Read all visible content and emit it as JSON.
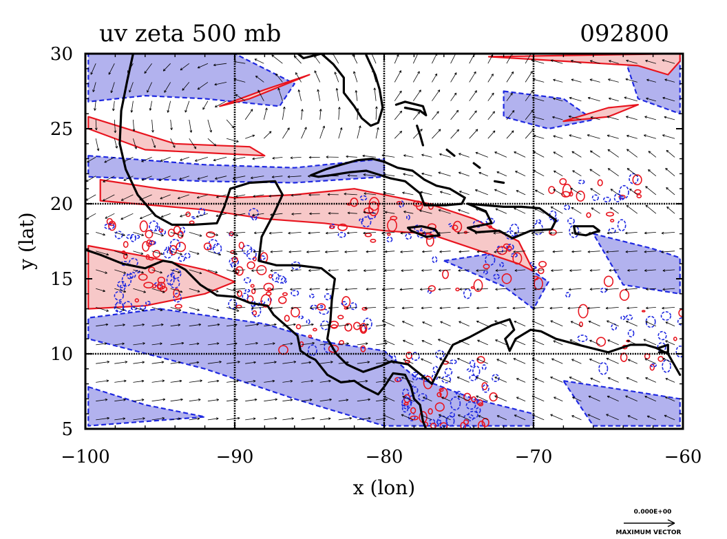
{
  "title": "uv zeta 500 mb",
  "timestamp": "092800",
  "axes": {
    "xlabel": "x (lon)",
    "ylabel": "y (lat)",
    "xlim": [
      -100,
      -60
    ],
    "ylim": [
      5,
      30
    ],
    "xticks": [
      -100,
      -90,
      -80,
      -70,
      -60
    ],
    "yticks": [
      5,
      10,
      15,
      20,
      25,
      30
    ],
    "xtick_labels": [
      "−100",
      "−90",
      "−80",
      "−70",
      "−60"
    ],
    "ytick_labels": [
      "5",
      "10",
      "15",
      "20",
      "25",
      "30"
    ],
    "gridlines_lon": [
      -90,
      -80,
      -70
    ],
    "gridlines_lat": [
      10,
      20
    ]
  },
  "legend": {
    "reference_value": "0.000E+00",
    "reference_caption": "MAXIMUM VECTOR"
  },
  "colors": {
    "positive_fill": "#f7c8c8",
    "positive_line": "#e8141e",
    "negative_fill": "#b2b2ee",
    "negative_line": "#1e28e0",
    "coast": "#000000",
    "vector": "#000000"
  },
  "chart_data": {
    "type": "map",
    "variables": [
      "u wind vectors",
      "relative vorticity (zeta)"
    ],
    "level": "500 mb",
    "x_range": [
      -100,
      -60
    ],
    "y_range": [
      5,
      30
    ],
    "positive_regions_lonlat": [
      [
        [
          -99,
          20.2
        ],
        [
          -92,
          19.6
        ],
        [
          -88,
          19.0
        ],
        [
          -84,
          18.7
        ],
        [
          -80,
          18.2
        ],
        [
          -77,
          18.0
        ],
        [
          -74,
          17.0
        ],
        [
          -71,
          16.0
        ],
        [
          -70,
          15.5
        ],
        [
          -71,
          17.5
        ],
        [
          -74,
          19.0
        ],
        [
          -77,
          20.0
        ],
        [
          -82,
          21.0
        ],
        [
          -86,
          20.6
        ],
        [
          -90,
          20.4
        ],
        [
          -95,
          21.0
        ],
        [
          -99,
          21.6
        ]
      ],
      [
        [
          -99.8,
          17.2
        ],
        [
          -96,
          16.5
        ],
        [
          -92,
          15.6
        ],
        [
          -90,
          14.8
        ],
        [
          -92,
          14.0
        ],
        [
          -96,
          13.2
        ],
        [
          -99.8,
          13.0
        ]
      ],
      [
        [
          -99.8,
          25.0
        ],
        [
          -96,
          23.6
        ],
        [
          -92,
          23.4
        ],
        [
          -88,
          23.2
        ],
        [
          -89,
          23.8
        ],
        [
          -94,
          24.0
        ],
        [
          -99.8,
          25.8
        ]
      ],
      [
        [
          -91,
          26.5
        ],
        [
          -88,
          27.6
        ],
        [
          -85,
          28.6
        ],
        [
          -86,
          28.2
        ],
        [
          -89,
          27.0
        ]
      ],
      [
        [
          -73,
          29.8
        ],
        [
          -68,
          29.5
        ],
        [
          -63,
          29.2
        ],
        [
          -61,
          28.6
        ],
        [
          -60.2,
          29.5
        ],
        [
          -60.2,
          30
        ]
      ],
      [
        [
          -68,
          25.5
        ],
        [
          -65,
          26.4
        ],
        [
          -63,
          26.6
        ],
        [
          -65,
          25.8
        ]
      ]
    ],
    "negative_regions_lonlat": [
      [
        [
          -99.8,
          30
        ],
        [
          -90,
          30
        ],
        [
          -86,
          28.0
        ],
        [
          -87,
          26.5
        ],
        [
          -92,
          27.0
        ],
        [
          -96,
          27.2
        ],
        [
          -99.8,
          26.8
        ]
      ],
      [
        [
          -99.8,
          23.2
        ],
        [
          -92,
          22.6
        ],
        [
          -86,
          22.4
        ],
        [
          -80,
          23.0
        ],
        [
          -80,
          21.8
        ],
        [
          -86,
          21.4
        ],
        [
          -92,
          21.5
        ],
        [
          -99.8,
          21.8
        ]
      ],
      [
        [
          -95,
          13.0
        ],
        [
          -88,
          12.0
        ],
        [
          -84,
          10.8
        ],
        [
          -80,
          10.2
        ],
        [
          -78,
          8.5
        ],
        [
          -74,
          7.0
        ],
        [
          -70,
          6.0
        ],
        [
          -70,
          5.2
        ],
        [
          -80,
          5.2
        ],
        [
          -86,
          7.0
        ],
        [
          -92,
          9.0
        ],
        [
          -99.8,
          11.0
        ],
        [
          -99.8,
          12.4
        ]
      ],
      [
        [
          -99.8,
          7.8
        ],
        [
          -96,
          6.6
        ],
        [
          -92,
          5.8
        ],
        [
          -99.8,
          5.2
        ]
      ],
      [
        [
          -76,
          16.2
        ],
        [
          -72,
          14.5
        ],
        [
          -70,
          13.0
        ],
        [
          -69,
          14.8
        ],
        [
          -72,
          16.8
        ]
      ],
      [
        [
          -64,
          30
        ],
        [
          -60.2,
          30
        ],
        [
          -60.2,
          26.0
        ],
        [
          -63,
          27.0
        ]
      ],
      [
        [
          -72,
          27.5
        ],
        [
          -68,
          27.0
        ],
        [
          -66,
          25.6
        ],
        [
          -69,
          25.0
        ],
        [
          -72,
          25.8
        ]
      ],
      [
        [
          -66,
          18.0
        ],
        [
          -62,
          17.0
        ],
        [
          -60.2,
          16.4
        ],
        [
          -60.2,
          14.0
        ],
        [
          -64,
          14.6
        ]
      ],
      [
        [
          -68,
          8.2
        ],
        [
          -64,
          7.6
        ],
        [
          -60.2,
          7.0
        ],
        [
          -60.2,
          5.2
        ],
        [
          -66,
          5.2
        ]
      ]
    ],
    "coastlines_lonlat": [
      [
        [
          -96.8,
          30
        ],
        [
          -97.2,
          28.2
        ],
        [
          -97.6,
          26.2
        ],
        [
          -97.7,
          24.0
        ],
        [
          -97.3,
          22.3
        ],
        [
          -96.5,
          20.6
        ],
        [
          -95.3,
          19.2
        ],
        [
          -94.2,
          18.6
        ],
        [
          -92.8,
          18.6
        ],
        [
          -91.2,
          18.7
        ],
        [
          -90.7,
          19.8
        ],
        [
          -90.3,
          21.0
        ],
        [
          -89.0,
          21.4
        ],
        [
          -87.3,
          21.5
        ],
        [
          -86.8,
          20.6
        ],
        [
          -87.4,
          19.3
        ],
        [
          -88.2,
          17.8
        ],
        [
          -88.4,
          16.2
        ],
        [
          -87.2,
          15.9
        ],
        [
          -85.8,
          15.9
        ],
        [
          -84.2,
          15.7
        ],
        [
          -83.3,
          15.0
        ],
        [
          -83.5,
          13.6
        ],
        [
          -83.6,
          12.2
        ],
        [
          -83.8,
          11.0
        ],
        [
          -83.2,
          10.0
        ],
        [
          -82.5,
          9.3
        ],
        [
          -81.4,
          8.8
        ],
        [
          -80.2,
          9.2
        ],
        [
          -79.5,
          9.5
        ],
        [
          -78.4,
          9.3
        ],
        [
          -77.4,
          8.5
        ],
        [
          -76.8,
          8.0
        ],
        [
          -76.2,
          9.2
        ],
        [
          -75.4,
          10.6
        ],
        [
          -74.3,
          11.1
        ],
        [
          -72.8,
          11.9
        ],
        [
          -71.6,
          12.3
        ],
        [
          -71.3,
          11.6
        ],
        [
          -71.9,
          11.0
        ],
        [
          -71.6,
          10.2
        ],
        [
          -71.2,
          11.0
        ],
        [
          -70.2,
          11.6
        ],
        [
          -69.5,
          11.5
        ],
        [
          -68.5,
          11.0
        ],
        [
          -67.0,
          10.6
        ],
        [
          -65.0,
          10.1
        ],
        [
          -63.5,
          10.6
        ],
        [
          -62.5,
          10.6
        ],
        [
          -61.8,
          10.4
        ],
        [
          -61.0,
          10.0
        ],
        [
          -60.2,
          8.6
        ]
      ],
      [
        [
          -105,
          20.5
        ],
        [
          -104,
          19.2
        ],
        [
          -102.5,
          18.1
        ],
        [
          -100.8,
          17.2
        ],
        [
          -99,
          16.6
        ],
        [
          -97.5,
          16.0
        ],
        [
          -96,
          15.7
        ],
        [
          -94.8,
          16.2
        ],
        [
          -94.2,
          16.1
        ],
        [
          -93.3,
          15.6
        ],
        [
          -92.3,
          14.6
        ],
        [
          -91.2,
          13.9
        ],
        [
          -90.0,
          13.8
        ],
        [
          -89.0,
          13.4
        ],
        [
          -87.8,
          13.2
        ],
        [
          -87.4,
          12.6
        ],
        [
          -86.6,
          11.9
        ],
        [
          -85.8,
          11.2
        ],
        [
          -85.6,
          10.2
        ],
        [
          -85.0,
          9.8
        ],
        [
          -84.6,
          9.6
        ],
        [
          -83.8,
          8.6
        ],
        [
          -82.9,
          8.1
        ],
        [
          -82.0,
          8.2
        ],
        [
          -81.4,
          7.8
        ],
        [
          -80.4,
          7.3
        ],
        [
          -80.0,
          7.8
        ],
        [
          -79.4,
          8.7
        ],
        [
          -78.6,
          8.6
        ],
        [
          -78.2,
          7.8
        ],
        [
          -78.0,
          7.0
        ],
        [
          -77.6,
          6.6
        ],
        [
          -77.4,
          5.5
        ],
        [
          -77.2,
          5.0
        ]
      ],
      [
        [
          -88,
          30.4
        ],
        [
          -87,
          30.3
        ],
        [
          -85.9,
          30.1
        ],
        [
          -85.4,
          29.7
        ],
        [
          -84.2,
          30.0
        ],
        [
          -83.4,
          29.3
        ],
        [
          -82.7,
          28.4
        ],
        [
          -82.7,
          27.4
        ],
        [
          -82.0,
          26.5
        ],
        [
          -81.5,
          25.7
        ],
        [
          -80.9,
          25.2
        ],
        [
          -80.4,
          25.4
        ],
        [
          -80.1,
          26.4
        ],
        [
          -80.3,
          27.6
        ],
        [
          -80.6,
          28.6
        ],
        [
          -81.2,
          29.9
        ]
      ],
      [
        [
          -84.9,
          21.9
        ],
        [
          -83.9,
          22.3
        ],
        [
          -82.9,
          22.6
        ],
        [
          -81.8,
          22.9
        ],
        [
          -80.8,
          23.0
        ],
        [
          -80.0,
          22.8
        ],
        [
          -79.1,
          22.4
        ],
        [
          -78.1,
          22.2
        ],
        [
          -77.3,
          21.6
        ],
        [
          -76.5,
          21.2
        ],
        [
          -75.6,
          21.0
        ],
        [
          -74.6,
          20.4
        ],
        [
          -74.8,
          20.0
        ],
        [
          -75.9,
          19.9
        ],
        [
          -77.3,
          19.9
        ],
        [
          -77.6,
          20.7
        ],
        [
          -78.6,
          21.5
        ],
        [
          -79.6,
          21.7
        ],
        [
          -81.2,
          22.2
        ],
        [
          -82.3,
          22.1
        ],
        [
          -83.6,
          21.9
        ],
        [
          -84.4,
          21.8
        ],
        [
          -84.9,
          21.9
        ]
      ],
      [
        [
          -78.4,
          18.4
        ],
        [
          -77.5,
          18.5
        ],
        [
          -76.6,
          18.3
        ],
        [
          -76.3,
          17.9
        ],
        [
          -77.2,
          17.8
        ],
        [
          -78.2,
          18.2
        ],
        [
          -78.4,
          18.4
        ]
      ],
      [
        [
          -74.4,
          20.0
        ],
        [
          -73.2,
          19.9
        ],
        [
          -72.0,
          19.8
        ],
        [
          -70.8,
          19.8
        ],
        [
          -69.6,
          19.7
        ],
        [
          -68.5,
          18.9
        ],
        [
          -68.8,
          18.3
        ],
        [
          -70.2,
          18.2
        ],
        [
          -71.4,
          17.7
        ],
        [
          -72.3,
          18.2
        ],
        [
          -73.8,
          18.1
        ],
        [
          -74.4,
          18.4
        ],
        [
          -72.8,
          18.7
        ],
        [
          -73.2,
          19.5
        ],
        [
          -74.4,
          20.0
        ]
      ],
      [
        [
          -67.3,
          18.5
        ],
        [
          -66.0,
          18.5
        ],
        [
          -65.6,
          18.2
        ],
        [
          -66.5,
          17.9
        ],
        [
          -67.2,
          18.0
        ],
        [
          -67.3,
          18.5
        ]
      ],
      [
        [
          -79.2,
          26.6
        ],
        [
          -78.6,
          26.8
        ],
        [
          -77.4,
          26.5
        ],
        [
          -77.2,
          25.9
        ],
        [
          -77.6,
          26.2
        ],
        [
          -78.6,
          26.4
        ]
      ],
      [
        [
          -77.8,
          25.2
        ],
        [
          -77.6,
          24.6
        ],
        [
          -77.4,
          23.9
        ]
      ],
      [
        [
          -75.8,
          23.6
        ],
        [
          -75.3,
          23.2
        ]
      ],
      [
        [
          -74.0,
          22.7
        ],
        [
          -73.6,
          22.4
        ]
      ],
      [
        [
          -72.6,
          21.5
        ],
        [
          -72.0,
          21.4
        ]
      ],
      [
        [
          -61.6,
          10.4
        ],
        [
          -61.0,
          10.6
        ],
        [
          -61.0,
          10.1
        ],
        [
          -61.6,
          10.1
        ]
      ]
    ]
  }
}
